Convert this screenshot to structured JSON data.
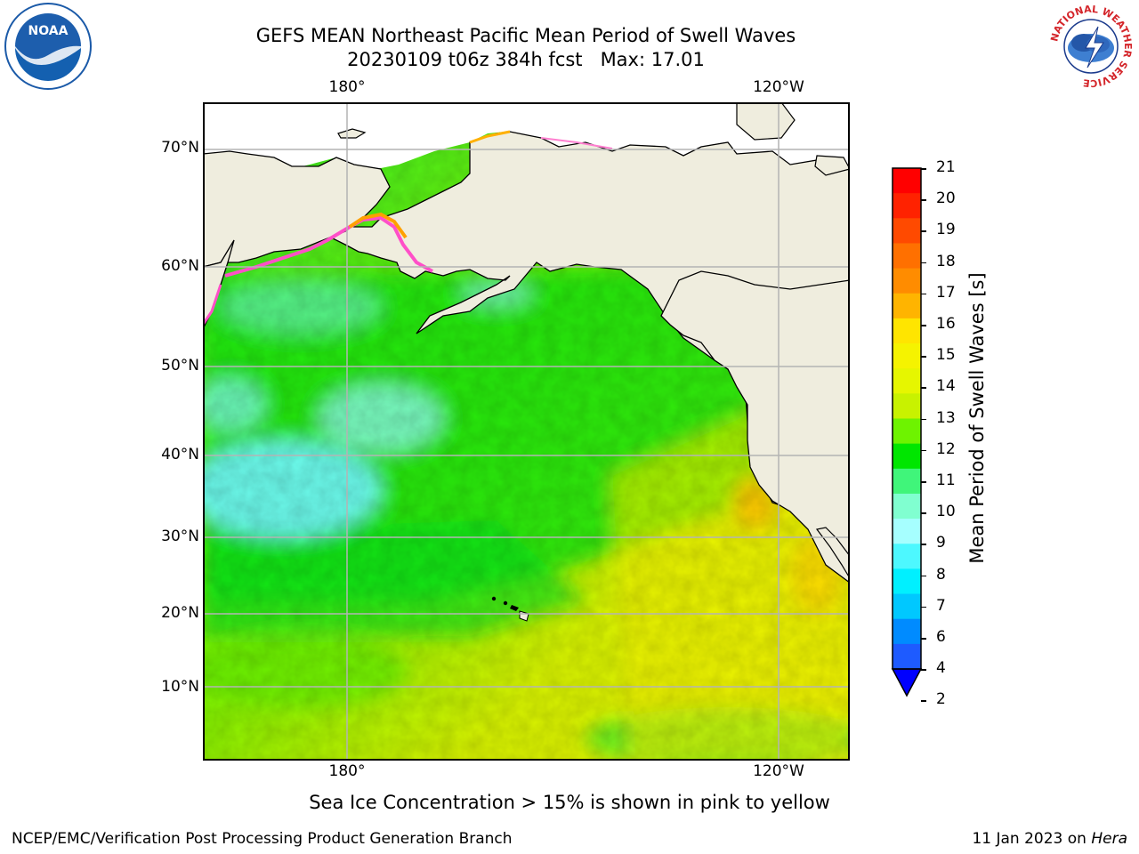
{
  "title": {
    "line1": "GEFS MEAN Northeast Pacific Mean Period of Swell Waves",
    "line2": "20230109 t06z 384h fcst   Max: 17.01"
  },
  "logos": {
    "noaa": "NOAA",
    "nws_ring": "NATIONAL WEATHER SERVICE"
  },
  "map": {
    "lat_labels": [
      "70°N",
      "60°N",
      "50°N",
      "40°N",
      "30°N",
      "20°N",
      "10°N"
    ],
    "lon_labels_top": [
      "180°",
      "120°W"
    ],
    "lon_labels_bottom": [
      "180°",
      "120°W"
    ],
    "land_color": "#efedde",
    "grid_color": "#b4b4b4"
  },
  "colorbar": {
    "title": "Mean Period of Swell Waves [s]",
    "ticks": [
      "21",
      "20",
      "19",
      "18",
      "17",
      "16",
      "15",
      "14",
      "13",
      "12",
      "11",
      "10",
      "9",
      "8",
      "7",
      "6",
      "4",
      "2"
    ],
    "colors": [
      "#ff0000",
      "#ff2200",
      "#ff4a00",
      "#ff7000",
      "#ff8c00",
      "#ffb400",
      "#ffe500",
      "#f5f300",
      "#e6f600",
      "#c8f200",
      "#6ef300",
      "#00e600",
      "#40f57a",
      "#80ffd0",
      "#a6ffff",
      "#4df8ff",
      "#00f0ff",
      "#00c8ff",
      "#008bff",
      "#1e5bff"
    ]
  },
  "footnote": "Sea Ice Concentration > 15% is shown in pink to yellow",
  "credit": "NCEP/EMC/Verification Post Processing Product Generation Branch",
  "date": {
    "text": "11 Jan 2023 on ",
    "host": "Hera"
  }
}
